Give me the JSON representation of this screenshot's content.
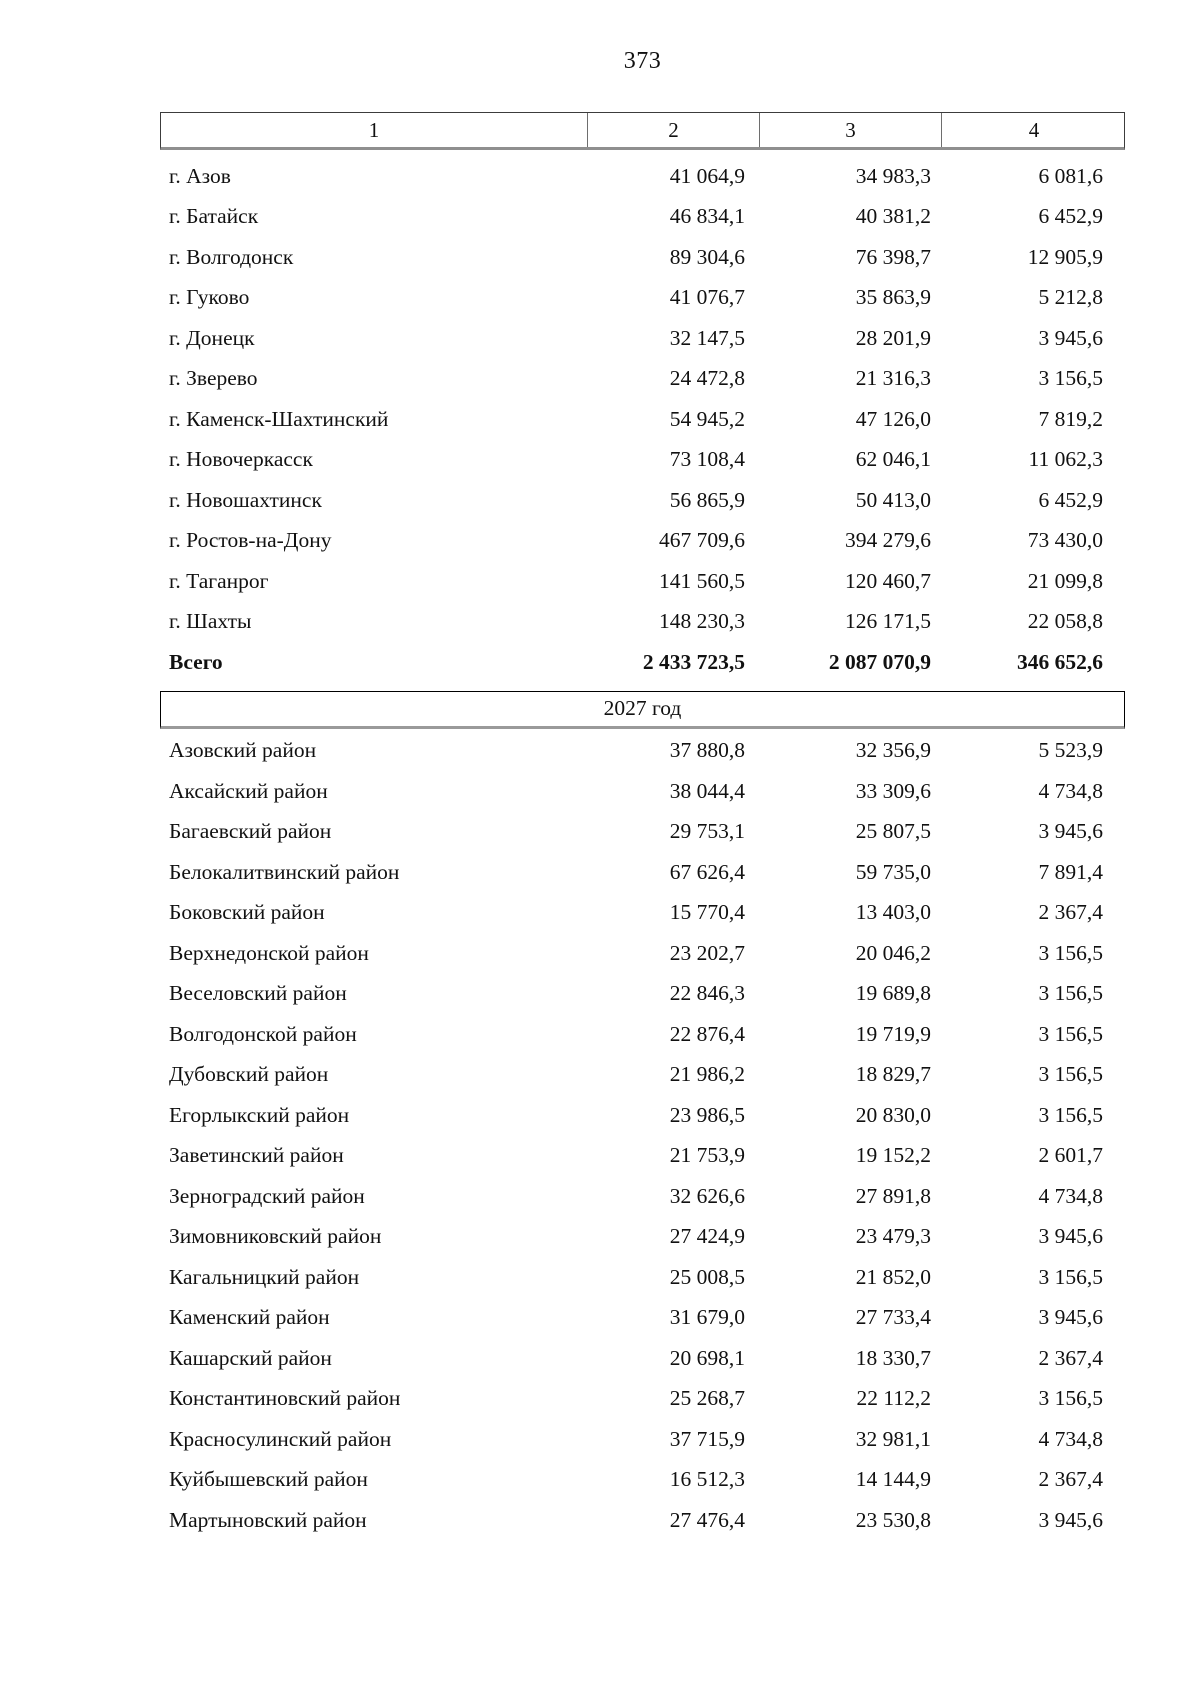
{
  "page_number": "373",
  "table": {
    "column_headers": [
      "1",
      "2",
      "3",
      "4"
    ],
    "city_rows": [
      {
        "name": "г. Азов",
        "col2": "41 064,9",
        "col3": "34 983,3",
        "col4": "6 081,6"
      },
      {
        "name": "г. Батайск",
        "col2": "46 834,1",
        "col3": "40 381,2",
        "col4": "6 452,9"
      },
      {
        "name": "г. Волгодонск",
        "col2": "89 304,6",
        "col3": "76 398,7",
        "col4": "12 905,9"
      },
      {
        "name": "г. Гуково",
        "col2": "41 076,7",
        "col3": "35 863,9",
        "col4": "5 212,8"
      },
      {
        "name": "г. Донецк",
        "col2": "32 147,5",
        "col3": "28 201,9",
        "col4": "3 945,6"
      },
      {
        "name": "г. Зверево",
        "col2": "24 472,8",
        "col3": "21 316,3",
        "col4": "3 156,5"
      },
      {
        "name": "г. Каменск-Шахтинский",
        "col2": "54 945,2",
        "col3": "47 126,0",
        "col4": "7 819,2"
      },
      {
        "name": "г. Новочеркасск",
        "col2": "73 108,4",
        "col3": "62 046,1",
        "col4": "11 062,3"
      },
      {
        "name": "г. Новошахтинск",
        "col2": "56 865,9",
        "col3": "50 413,0",
        "col4": "6 452,9"
      },
      {
        "name": "г. Ростов-на-Дону",
        "col2": "467 709,6",
        "col3": "394 279,6",
        "col4": "73 430,0"
      },
      {
        "name": "г. Таганрог",
        "col2": "141 560,5",
        "col3": "120 460,7",
        "col4": "21 099,8"
      },
      {
        "name": "г. Шахты",
        "col2": "148 230,3",
        "col3": "126 171,5",
        "col4": "22 058,8"
      }
    ],
    "total_row": {
      "name": "Всего",
      "col2": "2 433 723,5",
      "col3": "2 087 070,9",
      "col4": "346 652,6"
    },
    "year_section_label": "2027 год",
    "district_rows": [
      {
        "name": "Азовский район",
        "col2": "37 880,8",
        "col3": "32 356,9",
        "col4": "5 523,9"
      },
      {
        "name": "Аксайский район",
        "col2": "38 044,4",
        "col3": "33 309,6",
        "col4": "4 734,8"
      },
      {
        "name": "Багаевский район",
        "col2": "29 753,1",
        "col3": "25 807,5",
        "col4": "3 945,6"
      },
      {
        "name": "Белокалитвинский район",
        "col2": "67 626,4",
        "col3": "59 735,0",
        "col4": "7 891,4"
      },
      {
        "name": "Боковский район",
        "col2": "15 770,4",
        "col3": "13 403,0",
        "col4": "2 367,4"
      },
      {
        "name": "Верхнедонской район",
        "col2": "23 202,7",
        "col3": "20 046,2",
        "col4": "3 156,5"
      },
      {
        "name": "Веселовский район",
        "col2": "22 846,3",
        "col3": "19 689,8",
        "col4": "3 156,5"
      },
      {
        "name": "Волгодонской район",
        "col2": "22 876,4",
        "col3": "19 719,9",
        "col4": "3 156,5"
      },
      {
        "name": "Дубовский район",
        "col2": "21 986,2",
        "col3": "18 829,7",
        "col4": "3 156,5"
      },
      {
        "name": "Егорлыкский район",
        "col2": "23 986,5",
        "col3": "20 830,0",
        "col4": "3 156,5"
      },
      {
        "name": "Заветинский район",
        "col2": "21 753,9",
        "col3": "19 152,2",
        "col4": "2 601,7"
      },
      {
        "name": "Зерноградский район",
        "col2": "32 626,6",
        "col3": "27 891,8",
        "col4": "4 734,8"
      },
      {
        "name": "Зимовниковский район",
        "col2": "27 424,9",
        "col3": "23 479,3",
        "col4": "3 945,6"
      },
      {
        "name": "Кагальницкий район",
        "col2": "25 008,5",
        "col3": "21 852,0",
        "col4": "3 156,5"
      },
      {
        "name": "Каменский район",
        "col2": "31 679,0",
        "col3": "27 733,4",
        "col4": "3 945,6"
      },
      {
        "name": "Кашарский район",
        "col2": "20 698,1",
        "col3": "18 330,7",
        "col4": "2 367,4"
      },
      {
        "name": "Константиновский район",
        "col2": "25 268,7",
        "col3": "22 112,2",
        "col4": "3 156,5"
      },
      {
        "name": "Красносулинский район",
        "col2": "37 715,9",
        "col3": "32 981,1",
        "col4": "4 734,8"
      },
      {
        "name": "Куйбышевский район",
        "col2": "16 512,3",
        "col3": "14 144,9",
        "col4": "2 367,4"
      },
      {
        "name": "Мартыновский район",
        "col2": "27 476,4",
        "col3": "23 530,8",
        "col4": "3 945,6"
      }
    ]
  }
}
